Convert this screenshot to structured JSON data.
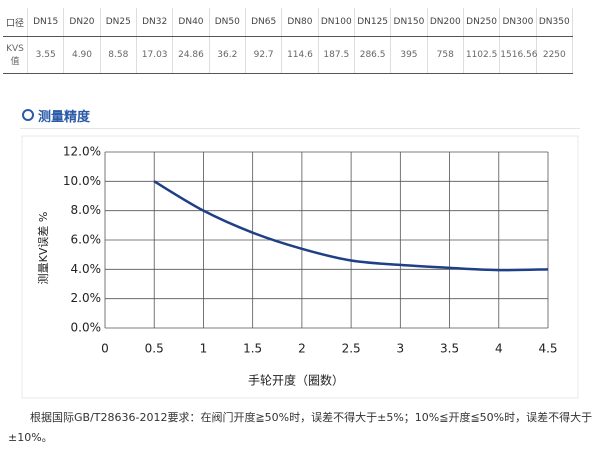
{
  "table": {
    "header": [
      "口径",
      "DN15",
      "DN20",
      "DN25",
      "DN32",
      "DN40",
      "DN50",
      "DN65",
      "DN80",
      "DN100",
      "DN125",
      "DN150",
      "DN200",
      "DN250",
      "DN300",
      "DN350"
    ],
    "rows": [
      [
        "KVS值",
        "3.55",
        "4.90",
        "8.58",
        "17.03",
        "24.86",
        "36.2",
        "92.7",
        "114.6",
        "187.5",
        "286.5",
        "395",
        "758",
        "1102.5",
        "1516.56",
        "2250"
      ]
    ]
  },
  "section_title": "测量精度",
  "chart_data": {
    "type": "line",
    "xlabel": "手轮开度（圈数）",
    "ylabel": "测量KV误差 %",
    "x": [
      0.5,
      1,
      1.5,
      2,
      2.5,
      3,
      3.5,
      4,
      4.5
    ],
    "values": [
      10.0,
      8.0,
      6.5,
      5.4,
      4.6,
      4.3,
      4.1,
      3.95,
      4.0
    ],
    "color": "#1f3f86",
    "xlim": [
      0,
      4.5
    ],
    "xticks": [
      0,
      0.5,
      1,
      1.5,
      2,
      2.5,
      3,
      3.5,
      4,
      4.5
    ],
    "ylim": [
      0,
      12
    ],
    "yticks": [
      {
        "value": 0,
        "label": "0.0%"
      },
      {
        "value": 2,
        "label": "2.0%"
      },
      {
        "value": 4,
        "label": "4.0%"
      },
      {
        "value": 6,
        "label": "6.0%"
      },
      {
        "value": 8,
        "label": "8.0%"
      },
      {
        "value": 10,
        "label": "10.0%"
      },
      {
        "value": 12,
        "label": "12.0%"
      }
    ],
    "grid": true
  },
  "note": "根据国际GB/T28636-2012要求：在阀门开度≧50%时，误差不得大于±5%；10%≦开度≦50%时，误差不得大于±10%。"
}
